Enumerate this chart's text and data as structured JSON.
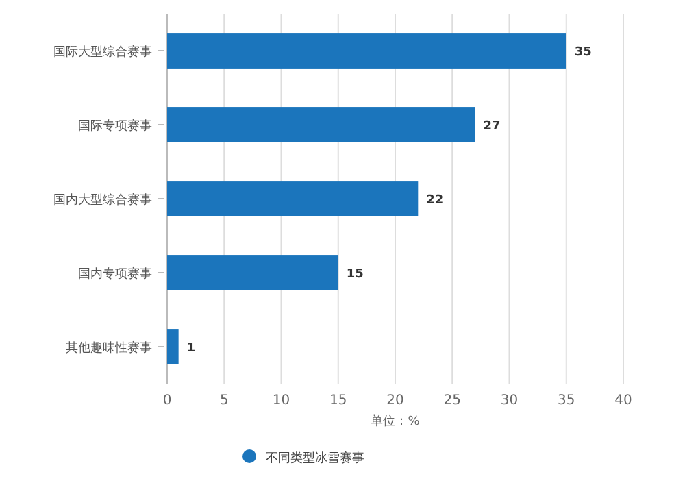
{
  "chart_data": {
    "type": "bar",
    "orientation": "horizontal",
    "xlabel": "单位：%",
    "categories": [
      "国际大型综合赛事",
      "国际专项赛事",
      "国内大型综合赛事",
      "国内专项赛事",
      "其他趣味性赛事"
    ],
    "series": [
      {
        "name": "不同类型冰雪赛事",
        "color": "#1b75bc",
        "values": [
          35,
          27,
          22,
          15,
          1
        ]
      }
    ],
    "xlim": [
      0,
      40
    ],
    "xticks": [
      0,
      5,
      10,
      15,
      20,
      25,
      30,
      35,
      40
    ],
    "grid": "x",
    "legend": "bottom",
    "data_labels": true
  }
}
